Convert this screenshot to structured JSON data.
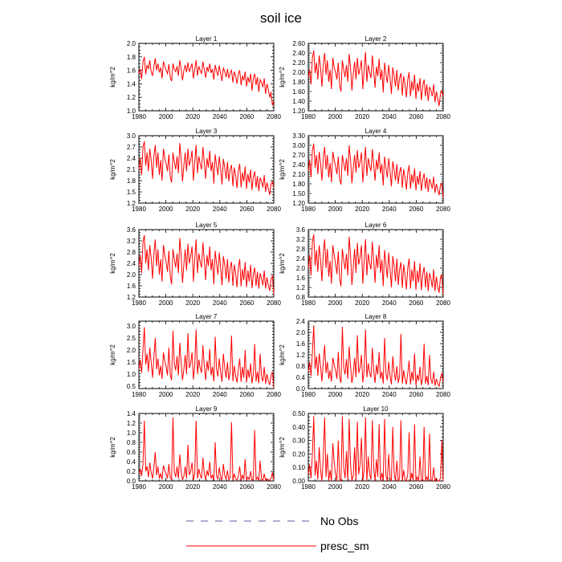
{
  "figure": {
    "title": "soil ice"
  },
  "legend": [
    {
      "label": "No Obs",
      "style": "dashed",
      "color": "#5a5aa0"
    },
    {
      "label": "presc_sm",
      "style": "solid",
      "color": "#ff0000"
    }
  ],
  "line_color": "#ff0000",
  "chart_data": [
    {
      "type": "line",
      "title": "Layer 1",
      "ylabel": "kg/m^2",
      "xlim": [
        1980,
        2080
      ],
      "xticks": [
        1980,
        2000,
        2020,
        2040,
        2060,
        2080
      ],
      "ylim": [
        1.0,
        2.0
      ],
      "yticks": [
        "1.0",
        "1.2",
        "1.4",
        "1.6",
        "1.8",
        "2.0"
      ],
      "values": [
        1.55,
        1.62,
        1.47,
        1.72,
        1.8,
        1.54,
        1.68,
        1.62,
        1.75,
        1.58,
        1.52,
        1.65,
        1.78,
        1.6,
        1.7,
        1.57,
        1.64,
        1.48,
        1.73,
        1.66,
        1.6,
        1.55,
        1.69,
        1.5,
        1.44,
        1.7,
        1.62,
        1.58,
        1.66,
        1.52,
        1.75,
        1.63,
        1.45,
        1.6,
        1.68,
        1.57,
        1.72,
        1.58,
        1.64,
        1.7,
        1.48,
        1.62,
        1.75,
        1.52,
        1.66,
        1.6,
        1.55,
        1.73,
        1.61,
        1.49,
        1.65,
        1.58,
        1.7,
        1.56,
        1.62,
        1.46,
        1.68,
        1.59,
        1.52,
        1.67,
        1.55,
        1.44,
        1.64,
        1.58,
        1.5,
        1.62,
        1.48,
        1.56,
        1.6,
        1.42,
        1.58,
        1.52,
        1.4,
        1.55,
        1.6,
        1.38,
        1.52,
        1.45,
        1.58,
        1.36,
        1.5,
        1.42,
        1.55,
        1.3,
        1.48,
        1.55,
        1.38,
        1.5,
        1.28,
        1.46,
        1.42,
        1.35,
        1.48,
        1.25,
        1.4,
        1.32,
        1.2,
        1.28,
        1.08,
        1.15
      ]
    },
    {
      "type": "line",
      "title": "Layer 2",
      "ylabel": "kg/m^2",
      "xlim": [
        1980,
        2080
      ],
      "xticks": [
        1980,
        2000,
        2020,
        2040,
        2060,
        2080
      ],
      "ylim": [
        1.2,
        2.6
      ],
      "yticks": [
        "1.20",
        "1.40",
        "1.60",
        "1.80",
        "2.00",
        "2.20",
        "2.40",
        "2.60"
      ],
      "values": [
        1.9,
        2.05,
        1.75,
        2.3,
        2.45,
        1.98,
        2.2,
        1.85,
        2.35,
        2.1,
        1.7,
        2.15,
        2.4,
        1.95,
        2.25,
        1.8,
        2.05,
        1.65,
        2.3,
        2.1,
        2.0,
        1.85,
        2.2,
        1.72,
        1.6,
        2.25,
        2.05,
        1.9,
        2.15,
        1.8,
        2.38,
        2.1,
        1.62,
        1.98,
        2.22,
        1.85,
        2.3,
        1.95,
        2.08,
        2.25,
        1.65,
        2.05,
        2.42,
        1.8,
        2.15,
        2.0,
        1.88,
        2.35,
        2.02,
        1.68,
        2.12,
        1.92,
        2.28,
        1.84,
        2.05,
        1.58,
        2.2,
        1.95,
        1.78,
        2.15,
        1.88,
        1.55,
        2.1,
        1.92,
        1.7,
        2.05,
        1.62,
        1.88,
        1.98,
        1.52,
        1.92,
        1.75,
        1.48,
        1.85,
        2.0,
        1.5,
        1.82,
        1.62,
        1.95,
        1.45,
        1.78,
        1.6,
        1.88,
        1.42,
        1.72,
        1.85,
        1.5,
        1.75,
        1.4,
        1.7,
        1.62,
        1.5,
        1.75,
        1.38,
        1.6,
        1.45,
        1.3,
        1.55,
        1.62,
        1.5
      ]
    },
    {
      "type": "line",
      "title": "Layer 3",
      "ylabel": "kg/m^2",
      "xlim": [
        1980,
        2080
      ],
      "xticks": [
        1980,
        2000,
        2020,
        2040,
        2060,
        2080
      ],
      "ylim": [
        1.2,
        3.0
      ],
      "yticks": [
        "1.2",
        "1.5",
        "1.8",
        "2.1",
        "2.4",
        "2.7",
        "3.0"
      ],
      "values": [
        2.1,
        2.4,
        1.95,
        2.7,
        2.85,
        2.2,
        2.55,
        2.05,
        2.65,
        2.35,
        1.85,
        2.45,
        2.75,
        2.15,
        2.55,
        1.95,
        2.35,
        1.8,
        2.65,
        2.4,
        2.25,
        2.05,
        2.5,
        1.9,
        1.75,
        2.55,
        2.3,
        2.1,
        2.45,
        2.0,
        2.8,
        2.4,
        1.78,
        2.2,
        2.55,
        2.05,
        2.65,
        2.2,
        2.35,
        2.6,
        1.8,
        2.3,
        2.75,
        2.0,
        2.45,
        2.25,
        2.1,
        2.7,
        2.28,
        1.85,
        2.4,
        2.15,
        2.6,
        2.05,
        2.3,
        1.72,
        2.5,
        2.2,
        1.95,
        2.45,
        2.1,
        1.7,
        2.38,
        2.15,
        1.85,
        2.3,
        1.78,
        2.1,
        2.22,
        1.65,
        2.15,
        1.95,
        1.6,
        2.05,
        2.25,
        1.62,
        2.02,
        1.78,
        2.18,
        1.58,
        1.98,
        1.75,
        2.1,
        1.55,
        1.9,
        2.05,
        1.62,
        1.92,
        1.52,
        1.88,
        1.78,
        1.62,
        1.95,
        1.5,
        1.75,
        1.58,
        1.42,
        1.7,
        1.78,
        1.62
      ]
    },
    {
      "type": "line",
      "title": "Layer 4",
      "ylabel": "kg/m^2",
      "xlim": [
        1980,
        2080
      ],
      "xticks": [
        1980,
        2000,
        2020,
        2040,
        2060,
        2080
      ],
      "ylim": [
        1.2,
        3.3
      ],
      "yticks": [
        "1.20",
        "1.50",
        "1.80",
        "2.10",
        "2.40",
        "2.70",
        "3.00",
        "3.30"
      ],
      "values": [
        2.2,
        2.55,
        2.0,
        2.85,
        3.05,
        2.3,
        2.7,
        2.1,
        2.8,
        2.45,
        1.9,
        2.6,
        2.95,
        2.25,
        2.7,
        2.0,
        2.45,
        1.85,
        2.8,
        2.55,
        2.35,
        2.1,
        2.65,
        1.95,
        1.78,
        2.7,
        2.45,
        2.2,
        2.6,
        2.05,
        3.0,
        2.55,
        1.82,
        2.3,
        2.7,
        2.15,
        2.85,
        2.3,
        2.48,
        2.78,
        1.85,
        2.42,
        2.95,
        2.05,
        2.6,
        2.35,
        2.2,
        2.88,
        2.4,
        1.9,
        2.55,
        2.25,
        2.78,
        2.12,
        2.42,
        1.75,
        2.65,
        2.3,
        2.0,
        2.6,
        2.2,
        1.72,
        2.5,
        2.25,
        1.9,
        2.42,
        1.8,
        2.18,
        2.32,
        1.68,
        2.25,
        2.0,
        1.62,
        2.15,
        2.38,
        1.65,
        2.1,
        1.82,
        2.28,
        1.6,
        2.05,
        1.78,
        2.2,
        1.58,
        1.95,
        2.12,
        1.65,
        2.0,
        1.55,
        1.95,
        1.82,
        1.65,
        2.02,
        1.52,
        1.8,
        1.62,
        1.45,
        1.75,
        1.82,
        1.35
      ]
    },
    {
      "type": "line",
      "title": "Layer 5",
      "ylabel": "kg/m^2",
      "xlim": [
        1980,
        2080
      ],
      "xticks": [
        1980,
        2000,
        2020,
        2040,
        2060,
        2080
      ],
      "ylim": [
        1.2,
        3.6
      ],
      "yticks": [
        "1.2",
        "1.6",
        "2.0",
        "2.4",
        "2.8",
        "3.2",
        "3.6"
      ],
      "values": [
        2.3,
        2.7,
        2.05,
        3.15,
        3.4,
        2.4,
        2.9,
        2.15,
        3.05,
        2.6,
        1.85,
        2.75,
        3.25,
        2.3,
        2.9,
        2.0,
        2.55,
        1.75,
        3.05,
        2.7,
        2.45,
        2.1,
        2.85,
        1.95,
        1.65,
        2.9,
        2.55,
        2.25,
        2.75,
        2.05,
        3.3,
        2.7,
        1.7,
        2.35,
        2.9,
        2.15,
        3.1,
        2.4,
        2.65,
        3.0,
        1.75,
        2.55,
        3.25,
        2.05,
        2.75,
        2.45,
        2.25,
        3.15,
        2.5,
        1.8,
        2.7,
        2.3,
        3.0,
        2.15,
        2.55,
        1.65,
        2.85,
        2.4,
        2.0,
        2.78,
        2.25,
        1.62,
        2.65,
        2.35,
        1.85,
        2.55,
        1.72,
        2.25,
        2.45,
        1.6,
        2.35,
        2.05,
        1.55,
        2.25,
        2.55,
        1.58,
        2.2,
        1.8,
        2.45,
        1.55,
        2.15,
        1.75,
        2.35,
        1.52,
        2.0,
        2.25,
        1.6,
        2.1,
        1.5,
        2.05,
        1.85,
        1.62,
        2.15,
        1.5,
        1.9,
        1.62,
        1.42,
        1.85,
        1.95,
        1.3
      ]
    },
    {
      "type": "line",
      "title": "Layer 6",
      "ylabel": "kg/m^2",
      "xlim": [
        1980,
        2080
      ],
      "xticks": [
        1980,
        2000,
        2020,
        2040,
        2060,
        2080
      ],
      "ylim": [
        0.8,
        3.6
      ],
      "yticks": [
        "0.8",
        "1.2",
        "1.6",
        "2.0",
        "2.4",
        "2.8",
        "3.2",
        "3.6"
      ],
      "values": [
        2.0,
        2.55,
        1.7,
        3.1,
        3.4,
        2.1,
        2.75,
        1.85,
        2.95,
        2.35,
        1.45,
        2.6,
        3.2,
        2.0,
        2.8,
        1.65,
        2.3,
        1.35,
        2.95,
        2.55,
        2.2,
        1.75,
        2.7,
        1.55,
        1.25,
        2.8,
        2.35,
        1.95,
        2.6,
        1.7,
        3.3,
        2.55,
        1.3,
        2.05,
        2.8,
        1.8,
        3.05,
        2.15,
        2.45,
        2.95,
        1.35,
        2.3,
        3.2,
        1.7,
        2.6,
        2.2,
        1.95,
        3.1,
        2.3,
        1.4,
        2.55,
        2.0,
        2.95,
        1.8,
        2.35,
        1.25,
        2.75,
        2.15,
        1.6,
        2.65,
        1.95,
        1.2,
        2.5,
        2.1,
        1.45,
        2.4,
        1.3,
        1.95,
        2.25,
        1.18,
        2.15,
        1.7,
        1.12,
        2.0,
        2.4,
        1.15,
        1.95,
        1.45,
        2.3,
        1.1,
        1.9,
        1.4,
        2.2,
        1.08,
        1.75,
        2.05,
        1.2,
        1.85,
        1.05,
        1.8,
        1.55,
        1.2,
        1.95,
        1.05,
        1.65,
        1.22,
        0.98,
        1.62,
        1.75,
        0.9
      ]
    },
    {
      "type": "line",
      "title": "Layer 7",
      "ylabel": "kg/m^2",
      "xlim": [
        1980,
        2080
      ],
      "xticks": [
        1980,
        2000,
        2020,
        2040,
        2060,
        2080
      ],
      "ylim": [
        0.4,
        3.2
      ],
      "yticks": [
        "0.5",
        "1.0",
        "1.5",
        "2.0",
        "2.5",
        "3.0"
      ],
      "values": [
        1.2,
        1.6,
        1.05,
        2.0,
        2.95,
        1.4,
        1.85,
        1.1,
        2.1,
        1.5,
        0.85,
        1.7,
        2.5,
        1.2,
        1.65,
        0.95,
        1.35,
        0.8,
        1.9,
        1.55,
        1.3,
        0.95,
        2.1,
        1.0,
        0.75,
        2.8,
        1.45,
        1.15,
        1.75,
        0.95,
        2.3,
        1.5,
        0.75,
        1.2,
        1.8,
        1.0,
        2.7,
        1.25,
        1.45,
        1.9,
        0.78,
        1.35,
        2.85,
        1.0,
        1.6,
        1.25,
        1.05,
        2.2,
        1.35,
        0.75,
        1.55,
        1.15,
        2.05,
        0.95,
        1.3,
        0.7,
        2.55,
        1.2,
        0.9,
        1.65,
        1.1,
        0.68,
        1.85,
        1.25,
        0.85,
        1.5,
        0.75,
        1.1,
        2.6,
        0.7,
        1.35,
        0.95,
        0.65,
        1.2,
        1.65,
        0.68,
        1.3,
        0.85,
        2.0,
        0.65,
        1.2,
        0.85,
        1.45,
        0.62,
        1.0,
        2.25,
        0.7,
        1.1,
        0.62,
        1.85,
        0.9,
        0.7,
        1.3,
        0.6,
        1.0,
        0.72,
        0.55,
        0.95,
        1.1,
        0.45
      ]
    },
    {
      "type": "line",
      "title": "Layer 8",
      "ylabel": "kg/m^2",
      "xlim": [
        1980,
        2080
      ],
      "xticks": [
        1980,
        2000,
        2020,
        2040,
        2060,
        2080
      ],
      "ylim": [
        0.0,
        2.4
      ],
      "yticks": [
        "0.0",
        "0.4",
        "0.8",
        "1.2",
        "1.6",
        "2.0",
        "2.4"
      ],
      "values": [
        0.6,
        0.95,
        0.45,
        1.3,
        2.25,
        0.7,
        1.15,
        0.45,
        1.25,
        0.8,
        0.25,
        0.95,
        1.55,
        0.55,
        0.95,
        0.35,
        0.65,
        0.25,
        1.1,
        0.85,
        0.65,
        0.35,
        1.3,
        0.4,
        0.2,
        2.2,
        0.75,
        0.5,
        1.05,
        0.35,
        1.5,
        0.8,
        0.2,
        0.55,
        1.1,
        0.4,
        1.9,
        0.55,
        0.75,
        1.2,
        0.22,
        0.65,
        2.1,
        0.4,
        0.9,
        0.55,
        0.4,
        1.45,
        0.65,
        0.2,
        0.85,
        0.5,
        1.3,
        0.35,
        0.6,
        0.18,
        1.8,
        0.55,
        0.3,
        0.95,
        0.45,
        0.15,
        1.15,
        0.6,
        0.28,
        0.8,
        0.2,
        0.45,
        1.95,
        0.18,
        0.65,
        0.35,
        0.15,
        0.55,
        1.0,
        0.15,
        0.6,
        0.28,
        1.25,
        0.12,
        0.5,
        0.28,
        0.78,
        0.12,
        0.38,
        1.6,
        0.18,
        0.45,
        0.12,
        1.2,
        0.32,
        0.18,
        0.6,
        0.1,
        0.35,
        0.18,
        0.08,
        0.35,
        0.55,
        0.25
      ]
    },
    {
      "type": "line",
      "title": "Layer 9",
      "ylabel": "kg/m^2",
      "xlim": [
        1980,
        2080
      ],
      "xticks": [
        1980,
        2000,
        2020,
        2040,
        2060,
        2080
      ],
      "ylim": [
        0.0,
        1.4
      ],
      "yticks": [
        "0.0",
        "0.2",
        "0.4",
        "0.6",
        "0.8",
        "1.0",
        "1.2",
        "1.4"
      ],
      "values": [
        0.15,
        0.25,
        0.1,
        0.35,
        1.25,
        0.2,
        0.3,
        0.08,
        0.38,
        0.18,
        0.05,
        0.28,
        0.6,
        0.12,
        0.3,
        0.05,
        0.15,
        0.03,
        0.32,
        0.22,
        0.15,
        0.05,
        0.35,
        0.08,
        0.02,
        1.32,
        0.2,
        0.08,
        0.3,
        0.05,
        0.55,
        0.2,
        0.02,
        0.1,
        0.3,
        0.05,
        0.75,
        0.12,
        0.2,
        0.38,
        0.02,
        0.15,
        1.25,
        0.05,
        0.25,
        0.12,
        0.05,
        0.48,
        0.15,
        0.02,
        0.22,
        0.1,
        0.4,
        0.05,
        0.12,
        0.01,
        0.8,
        0.1,
        0.04,
        0.28,
        0.08,
        0.01,
        0.35,
        0.12,
        0.03,
        0.22,
        0.02,
        0.08,
        1.22,
        0.01,
        0.15,
        0.05,
        0.01,
        0.1,
        0.3,
        0.01,
        0.12,
        0.03,
        0.45,
        0.01,
        0.08,
        0.03,
        0.2,
        0.01,
        0.05,
        1.05,
        0.02,
        0.08,
        0.01,
        0.42,
        0.04,
        0.01,
        0.15,
        0.01,
        0.05,
        0.02,
        0.01,
        0.05,
        0.18,
        0.02
      ]
    },
    {
      "type": "line",
      "title": "Layer 10",
      "ylabel": "kg/m^2",
      "xlim": [
        1980,
        2080
      ],
      "xticks": [
        1980,
        2000,
        2020,
        2040,
        2060,
        2080
      ],
      "ylim": [
        0.0,
        0.5
      ],
      "yticks": [
        "0.00",
        "0.10",
        "0.20",
        "0.30",
        "0.40",
        "0.50"
      ],
      "values": [
        0.05,
        0.12,
        0.02,
        0.2,
        0.48,
        0.04,
        0.15,
        0.01,
        0.25,
        0.08,
        0.0,
        0.18,
        0.47,
        0.03,
        0.2,
        0.0,
        0.08,
        0.0,
        0.28,
        0.14,
        0.05,
        0.0,
        0.3,
        0.01,
        0.0,
        0.48,
        0.1,
        0.02,
        0.22,
        0.0,
        0.46,
        0.12,
        0.0,
        0.04,
        0.25,
        0.0,
        0.44,
        0.05,
        0.12,
        0.32,
        0.0,
        0.08,
        0.47,
        0.0,
        0.18,
        0.05,
        0.01,
        0.45,
        0.1,
        0.0,
        0.16,
        0.03,
        0.42,
        0.0,
        0.06,
        0.0,
        0.46,
        0.04,
        0.0,
        0.2,
        0.02,
        0.0,
        0.4,
        0.06,
        0.0,
        0.15,
        0.0,
        0.02,
        0.45,
        0.0,
        0.08,
        0.01,
        0.0,
        0.05,
        0.36,
        0.0,
        0.06,
        0.0,
        0.42,
        0.0,
        0.03,
        0.0,
        0.18,
        0.0,
        0.01,
        0.4,
        0.0,
        0.03,
        0.0,
        0.35,
        0.01,
        0.0,
        0.1,
        0.0,
        0.02,
        0.0,
        0.0,
        0.02,
        0.3,
        0.0
      ]
    }
  ]
}
